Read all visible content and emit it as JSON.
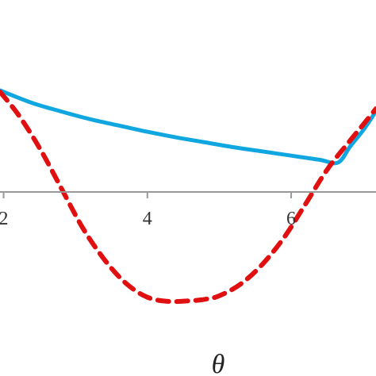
{
  "chart_data": {
    "type": "line",
    "xlabel": "θ",
    "ylabel": "",
    "xlim": [
      1.95,
      7.18
    ],
    "ylim": [
      -1.55,
      1.46
    ],
    "x_ticks": [
      {
        "value": 2,
        "label": "2"
      },
      {
        "value": 4,
        "label": "4"
      },
      {
        "value": 6,
        "label": "6"
      }
    ],
    "grid": false,
    "legend": "none",
    "series": [
      {
        "style": "solid",
        "color": "#10a7e0",
        "x": [
          1.95,
          2.4,
          2.8,
          3.2,
          3.6,
          4.0,
          4.4,
          4.8,
          5.2,
          5.6,
          6.0,
          6.4,
          6.65,
          6.82,
          7.0,
          7.12,
          7.18
        ],
        "y": [
          1.46,
          1.28,
          1.16,
          1.05,
          0.96,
          0.87,
          0.79,
          0.72,
          0.65,
          0.59,
          0.53,
          0.47,
          0.43,
          0.66,
          0.89,
          1.07,
          1.17
        ]
      },
      {
        "style": "dashed",
        "color": "#e01010",
        "x": [
          1.95,
          2.2,
          2.5,
          2.8,
          3.1,
          3.4,
          3.7,
          4.0,
          4.3,
          4.6,
          4.8,
          5.0,
          5.3,
          5.6,
          5.9,
          6.2,
          6.5,
          6.8,
          7.0,
          7.18
        ],
        "y": [
          1.44,
          1.12,
          0.64,
          0.07,
          -0.5,
          -0.95,
          -1.29,
          -1.49,
          -1.55,
          -1.54,
          -1.52,
          -1.47,
          -1.3,
          -1.02,
          -0.64,
          -0.16,
          0.33,
          0.72,
          0.97,
          1.2
        ]
      }
    ]
  }
}
